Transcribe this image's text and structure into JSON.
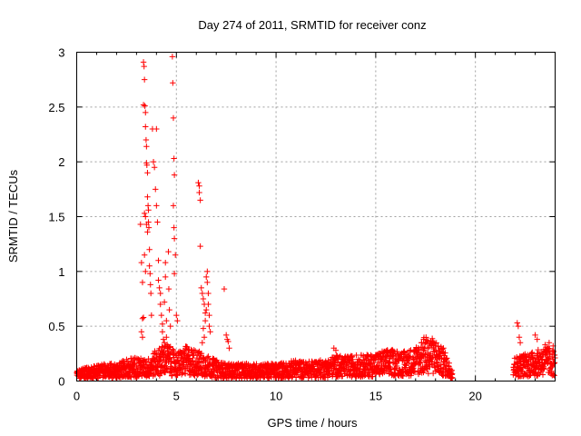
{
  "chart_data": {
    "type": "scatter",
    "title": "Day 274 of 2011, SRMTID for receiver conz",
    "xlabel": "GPS time / hours",
    "ylabel": "SRMTID / TECUs",
    "xlim": [
      0,
      24
    ],
    "ylim": [
      0,
      3
    ],
    "xticks": [
      0,
      5,
      10,
      15,
      20
    ],
    "yticks": [
      0,
      0.5,
      1,
      1.5,
      2,
      2.5,
      3
    ],
    "xtick_labels": [
      "0",
      "5",
      "10",
      "15",
      "20"
    ],
    "ytick_labels": [
      "0",
      "0.5",
      "1",
      "1.5",
      "2",
      "2.5",
      "3"
    ],
    "grid": true,
    "marker": "plus",
    "color": "#ff0000",
    "background_trend": [
      [
        0.0,
        0.06
      ],
      [
        0.5,
        0.08
      ],
      [
        1.0,
        0.09
      ],
      [
        1.5,
        0.1
      ],
      [
        2.0,
        0.1
      ],
      [
        2.5,
        0.13
      ],
      [
        3.0,
        0.14
      ],
      [
        3.5,
        0.12
      ],
      [
        4.0,
        0.18
      ],
      [
        4.5,
        0.22
      ],
      [
        5.0,
        0.16
      ],
      [
        5.5,
        0.2
      ],
      [
        6.0,
        0.18
      ],
      [
        6.5,
        0.15
      ],
      [
        7.0,
        0.12
      ],
      [
        7.5,
        0.1
      ],
      [
        8.0,
        0.1
      ],
      [
        8.5,
        0.1
      ],
      [
        9.0,
        0.1
      ],
      [
        9.5,
        0.1
      ],
      [
        10.0,
        0.1
      ],
      [
        10.5,
        0.11
      ],
      [
        11.0,
        0.12
      ],
      [
        11.5,
        0.11
      ],
      [
        12.0,
        0.12
      ],
      [
        12.5,
        0.12
      ],
      [
        13.0,
        0.15
      ],
      [
        13.5,
        0.14
      ],
      [
        14.0,
        0.15
      ],
      [
        14.5,
        0.15
      ],
      [
        15.0,
        0.16
      ],
      [
        15.5,
        0.18
      ],
      [
        16.0,
        0.18
      ],
      [
        16.5,
        0.17
      ],
      [
        17.0,
        0.2
      ],
      [
        17.5,
        0.26
      ],
      [
        18.0,
        0.24
      ],
      [
        18.5,
        0.16
      ],
      [
        18.8,
        0.08
      ],
      [
        22.0,
        0.14
      ],
      [
        22.5,
        0.16
      ],
      [
        23.0,
        0.17
      ],
      [
        23.5,
        0.2
      ],
      [
        24.0,
        0.18
      ]
    ],
    "gaps": [
      [
        18.85,
        21.9
      ]
    ],
    "points": [
      [
        3.2,
        1.43
      ],
      [
        3.25,
        1.08
      ],
      [
        3.3,
        0.9
      ],
      [
        3.35,
        2.52
      ],
      [
        3.35,
        2.91
      ],
      [
        3.38,
        2.87
      ],
      [
        3.4,
        2.75
      ],
      [
        3.42,
        2.51
      ],
      [
        3.45,
        2.45
      ],
      [
        3.45,
        2.32
      ],
      [
        3.48,
        2.2
      ],
      [
        3.5,
        2.14
      ],
      [
        3.5,
        1.99
      ],
      [
        3.52,
        1.97
      ],
      [
        3.55,
        1.9
      ],
      [
        3.55,
        1.68
      ],
      [
        3.58,
        1.6
      ],
      [
        3.6,
        1.56
      ],
      [
        3.6,
        1.45
      ],
      [
        3.62,
        1.4
      ],
      [
        3.65,
        1.2
      ],
      [
        3.65,
        1.05
      ],
      [
        3.68,
        0.98
      ],
      [
        3.7,
        0.88
      ],
      [
        3.72,
        0.8
      ],
      [
        3.75,
        0.6
      ],
      [
        3.4,
        1.53
      ],
      [
        3.45,
        1.5
      ],
      [
        3.5,
        1.43
      ],
      [
        3.55,
        1.36
      ],
      [
        3.4,
        1.15
      ],
      [
        3.45,
        1.0
      ],
      [
        3.3,
        0.57
      ],
      [
        3.35,
        0.58
      ],
      [
        3.25,
        0.45
      ],
      [
        3.3,
        0.4
      ],
      [
        3.8,
        2.3
      ],
      [
        3.85,
        2.0
      ],
      [
        3.9,
        1.95
      ],
      [
        3.95,
        1.75
      ],
      [
        4.0,
        1.6
      ],
      [
        4.0,
        2.3
      ],
      [
        4.05,
        1.45
      ],
      [
        4.1,
        1.1
      ],
      [
        4.1,
        0.92
      ],
      [
        4.15,
        0.85
      ],
      [
        4.2,
        0.8
      ],
      [
        4.2,
        0.7
      ],
      [
        4.25,
        0.6
      ],
      [
        4.3,
        0.52
      ],
      [
        4.3,
        0.45
      ],
      [
        4.35,
        0.38
      ],
      [
        4.4,
        0.35
      ],
      [
        4.4,
        0.72
      ],
      [
        4.45,
        0.95
      ],
      [
        4.45,
        1.08
      ],
      [
        4.5,
        0.55
      ],
      [
        4.5,
        0.4
      ],
      [
        4.55,
        0.3
      ],
      [
        4.6,
        0.25
      ],
      [
        4.6,
        1.18
      ],
      [
        4.62,
        0.84
      ],
      [
        4.65,
        0.65
      ],
      [
        4.7,
        0.5
      ],
      [
        4.8,
        2.96
      ],
      [
        4.82,
        2.72
      ],
      [
        4.85,
        2.4
      ],
      [
        4.88,
        2.03
      ],
      [
        4.9,
        1.88
      ],
      [
        4.85,
        1.6
      ],
      [
        4.88,
        1.4
      ],
      [
        4.9,
        1.3
      ],
      [
        4.95,
        1.15
      ],
      [
        4.9,
        0.98
      ],
      [
        5.0,
        0.6
      ],
      [
        5.05,
        0.55
      ],
      [
        6.1,
        1.81
      ],
      [
        6.15,
        1.78
      ],
      [
        6.15,
        1.72
      ],
      [
        6.2,
        1.65
      ],
      [
        6.2,
        1.23
      ],
      [
        6.25,
        0.85
      ],
      [
        6.3,
        0.8
      ],
      [
        6.35,
        0.75
      ],
      [
        6.4,
        0.7
      ],
      [
        6.45,
        0.62
      ],
      [
        6.5,
        0.95
      ],
      [
        6.55,
        1.0
      ],
      [
        6.55,
        0.9
      ],
      [
        6.6,
        0.8
      ],
      [
        6.6,
        0.7
      ],
      [
        6.65,
        0.6
      ],
      [
        6.65,
        0.5
      ],
      [
        6.7,
        0.45
      ],
      [
        6.35,
        0.48
      ],
      [
        6.4,
        0.4
      ],
      [
        6.3,
        0.35
      ],
      [
        6.45,
        0.55
      ],
      [
        6.5,
        0.65
      ],
      [
        7.4,
        0.84
      ],
      [
        7.5,
        0.42
      ],
      [
        7.55,
        0.38
      ],
      [
        7.6,
        0.36
      ],
      [
        7.65,
        0.3
      ],
      [
        12.9,
        0.3
      ],
      [
        13.0,
        0.28
      ],
      [
        17.3,
        0.35
      ],
      [
        17.4,
        0.38
      ],
      [
        17.6,
        0.36
      ],
      [
        17.8,
        0.33
      ],
      [
        18.0,
        0.32
      ],
      [
        18.2,
        0.28
      ],
      [
        18.4,
        0.3
      ],
      [
        22.1,
        0.53
      ],
      [
        22.15,
        0.5
      ],
      [
        22.2,
        0.4
      ],
      [
        22.25,
        0.35
      ],
      [
        23.0,
        0.42
      ],
      [
        23.1,
        0.38
      ],
      [
        23.5,
        0.33
      ],
      [
        23.7,
        0.35
      ],
      [
        23.9,
        0.32
      ]
    ]
  }
}
